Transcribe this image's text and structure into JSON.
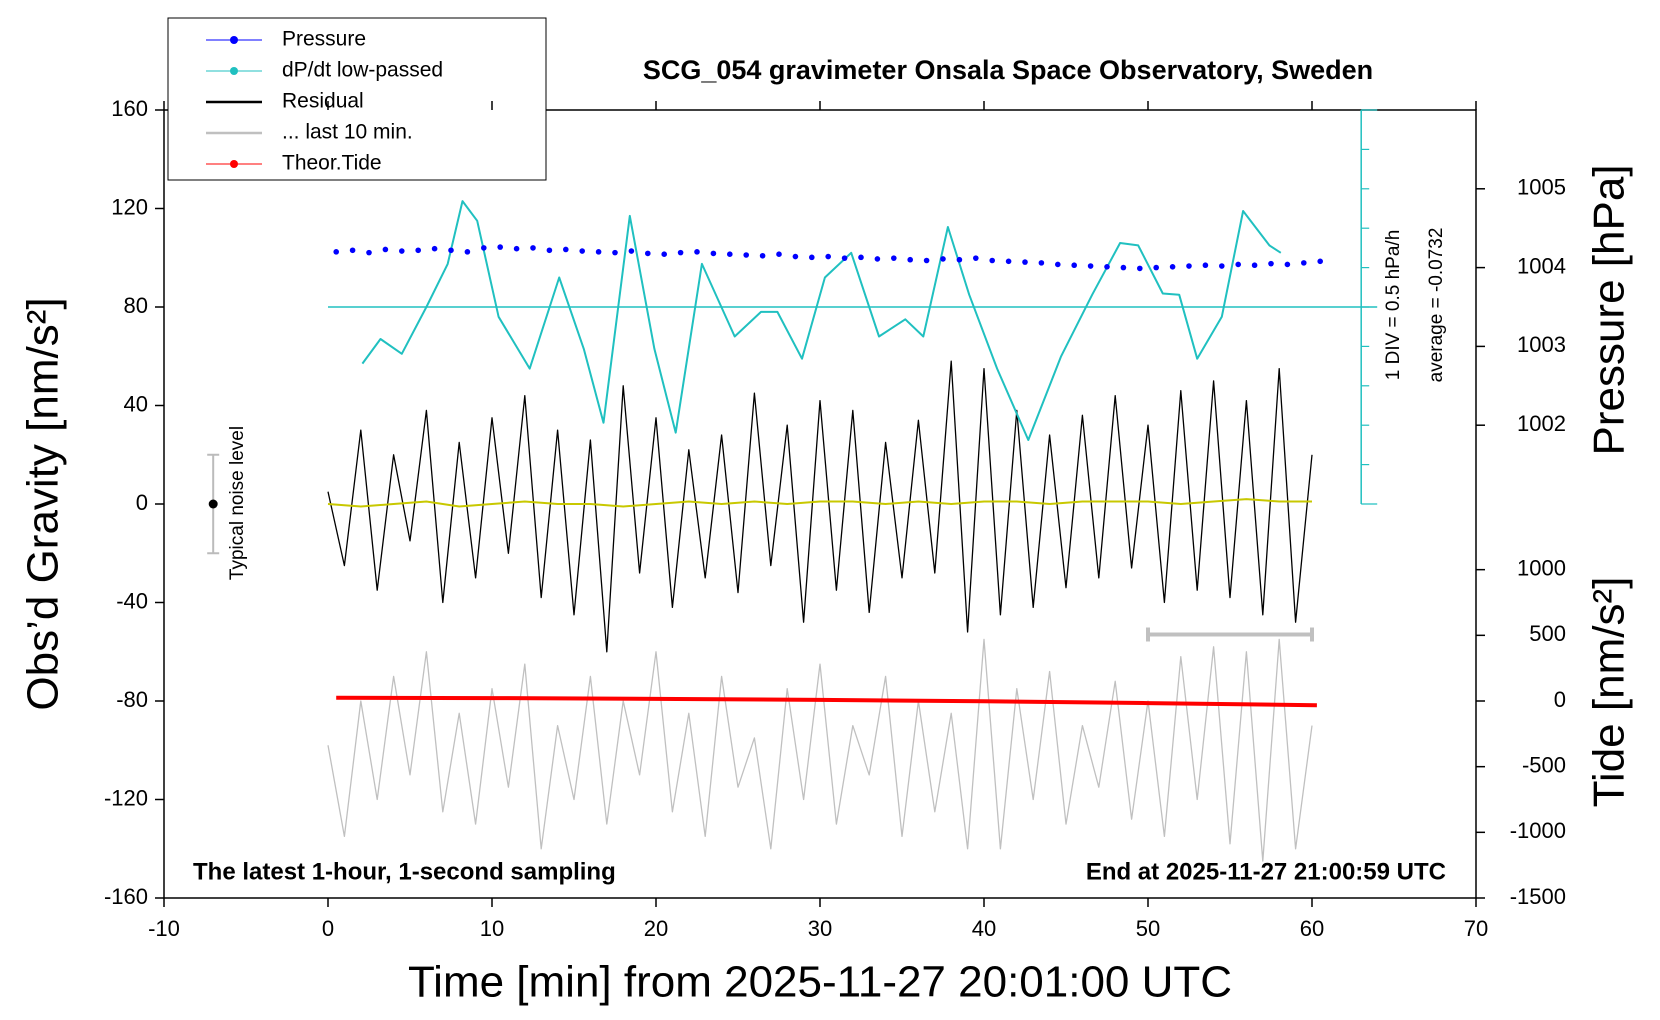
{
  "chart_data": {
    "type": "line",
    "title": "SCG_054 gravimeter Onsala Space Observatory, Sweden",
    "x_label": "Time [min] from 2025-11-27 20:01:00 UTC",
    "y_label": "Obs’d Gravity [nm/s²]",
    "y2_label": "Pressure [hPa]",
    "y3_label": "Tide [nm/s²]",
    "annotations": [
      "The latest 1-hour, 1-second sampling",
      "End at 2025-11-27 21:00:59 UTC"
    ],
    "xlim": [
      -10,
      70
    ],
    "xticks": [
      -10,
      0,
      10,
      20,
      30,
      40,
      50,
      60,
      70
    ],
    "ylim": [
      -160,
      160
    ],
    "yticks": [
      -160,
      -120,
      -80,
      -40,
      0,
      40,
      80,
      120,
      160
    ],
    "y2lim": [
      996,
      1006
    ],
    "y2ticks": [
      1002,
      1003,
      1004,
      1005
    ],
    "y3lim": [
      -1500,
      4500
    ],
    "y3ticks": [
      -1500,
      -1000,
      -500,
      0,
      500,
      1000
    ],
    "grid": false,
    "legend": "upper left",
    "series": [
      {
        "name": "Pressure",
        "color": "#0000ff",
        "axis": "y2",
        "marker": "dot",
        "x": [
          0.5,
          1.5,
          2.5,
          3.5,
          4.5,
          5.5,
          6.5,
          7.5,
          8.5,
          9.5,
          10.5,
          11.5,
          12.5,
          13.5,
          14.5,
          15.5,
          16.5,
          17.5,
          18.5,
          19.5,
          20.5,
          21.5,
          22.5,
          23.5,
          24.5,
          25.5,
          26.5,
          27.5,
          28.5,
          29.5,
          30.5,
          31.5,
          32.5,
          33.5,
          34.5,
          35.5,
          36.5,
          37.5,
          38.5,
          39.5,
          40.5,
          41.5,
          42.5,
          43.5,
          44.5,
          45.5,
          46.5,
          47.5,
          48.5,
          49.5,
          50.5,
          51.5,
          52.5,
          53.5,
          54.5,
          55.5,
          56.5,
          57.5,
          58.5,
          59.5,
          60.5
        ],
        "values": [
          1004.2,
          1004.22,
          1004.19,
          1004.23,
          1004.21,
          1004.22,
          1004.24,
          1004.22,
          1004.2,
          1004.25,
          1004.26,
          1004.24,
          1004.25,
          1004.22,
          1004.23,
          1004.21,
          1004.2,
          1004.19,
          1004.21,
          1004.18,
          1004.17,
          1004.19,
          1004.2,
          1004.18,
          1004.17,
          1004.16,
          1004.15,
          1004.17,
          1004.14,
          1004.13,
          1004.14,
          1004.12,
          1004.13,
          1004.11,
          1004.12,
          1004.1,
          1004.09,
          1004.11,
          1004.1,
          1004.12,
          1004.09,
          1004.08,
          1004.07,
          1004.06,
          1004.04,
          1004.03,
          1004.02,
          1004.01,
          1004.0,
          1003.99,
          1004.0,
          1004.01,
          1004.02,
          1004.03,
          1004.02,
          1004.04,
          1004.03,
          1004.05,
          1004.04,
          1004.06,
          1004.08
        ]
      },
      {
        "name": "dP/dt low-passed",
        "color": "#20c0c0",
        "axis": "y",
        "marker": "dot",
        "x": [
          2.1,
          3.2,
          4.5,
          6,
          7.3,
          8.2,
          9.1,
          10.4,
          12.3,
          14.1,
          15.6,
          16.8,
          18.4,
          19.9,
          21.2,
          22.8,
          24.8,
          26.4,
          27.4,
          28.9,
          30.3,
          31.9,
          33.6,
          35.2,
          36.3,
          37.8,
          39.1,
          40.8,
          42.7,
          44.7,
          46.6,
          48.3,
          49.4,
          50.9,
          51.9,
          53,
          54.5,
          55.8,
          57.4,
          58.1
        ],
        "values": [
          57,
          67,
          61,
          80,
          97.5,
          123,
          115,
          76,
          55,
          92,
          63,
          33,
          117,
          63,
          29,
          97.5,
          68,
          78,
          78,
          59,
          92,
          102,
          68,
          75,
          68,
          112.5,
          85,
          55,
          26,
          60,
          85,
          106,
          105,
          85.5,
          85,
          59,
          76,
          119,
          105,
          102
        ]
      },
      {
        "name": "Residual",
        "color": "#000000",
        "axis": "y",
        "marker": "line",
        "x": [
          0,
          1,
          2,
          3,
          4,
          5,
          6,
          7,
          8,
          9,
          10,
          11,
          12,
          13,
          14,
          15,
          16,
          17,
          18,
          19,
          20,
          21,
          22,
          23,
          24,
          25,
          26,
          27,
          28,
          29,
          30,
          31,
          32,
          33,
          34,
          35,
          36,
          37,
          38,
          39,
          40,
          41,
          42,
          43,
          44,
          45,
          46,
          47,
          48,
          49,
          50,
          51,
          52,
          53,
          54,
          55,
          56,
          57,
          58,
          59,
          60
        ],
        "values": [
          5,
          -25,
          30,
          -35,
          20,
          -15,
          38,
          -40,
          25,
          -30,
          35,
          -20,
          44,
          -38,
          30,
          -45,
          26,
          -60,
          48,
          -28,
          35,
          -42,
          22,
          -30,
          28,
          -36,
          45,
          -25,
          32,
          -48,
          42,
          -35,
          38,
          -44,
          25,
          -30,
          34,
          -28,
          58,
          -52,
          55,
          -45,
          38,
          -42,
          28,
          -34,
          36,
          -30,
          44,
          -26,
          32,
          -40,
          46,
          -35,
          50,
          -38,
          42,
          -45,
          55,
          -48,
          20
        ]
      },
      {
        "name": "... last 10 min.",
        "color": "#c0c0c0",
        "axis": "y",
        "marker": "line",
        "x": [
          0,
          1,
          2,
          3,
          4,
          5,
          6,
          7,
          8,
          9,
          10,
          11,
          12,
          13,
          14,
          15,
          16,
          17,
          18,
          19,
          20,
          21,
          22,
          23,
          24,
          25,
          26,
          27,
          28,
          29,
          30,
          31,
          32,
          33,
          34,
          35,
          36,
          37,
          38,
          39,
          40,
          41,
          42,
          43,
          44,
          45,
          46,
          47,
          48,
          49,
          50,
          51,
          52,
          53,
          54,
          55,
          56,
          57,
          58,
          59,
          60
        ],
        "values": [
          -98,
          -135,
          -80,
          -120,
          -70,
          -110,
          -60,
          -125,
          -85,
          -130,
          -75,
          -115,
          -65,
          -140,
          -90,
          -120,
          -70,
          -130,
          -80,
          -110,
          -60,
          -125,
          -85,
          -135,
          -70,
          -115,
          -95,
          -140,
          -75,
          -120,
          -65,
          -130,
          -90,
          -110,
          -70,
          -135,
          -80,
          -125,
          -85,
          -140,
          -55,
          -140,
          -75,
          -120,
          -68,
          -130,
          -90,
          -115,
          -72,
          -128,
          -80,
          -135,
          -62,
          -120,
          -58,
          -138,
          -60,
          -145,
          -55,
          -140,
          -90
        ]
      },
      {
        "name": "Theor.Tide",
        "color": "#ff0000",
        "axis": "y3",
        "marker": "dot",
        "x": [
          0.5,
          10,
          20,
          30,
          40,
          50,
          60.3
        ],
        "values": [
          24,
          22,
          16,
          8,
          -2,
          -16,
          -32
        ]
      }
    ],
    "smoothed_residual": {
      "color": "#c8c800",
      "x": [
        0,
        2,
        4,
        6,
        8,
        10,
        12,
        14,
        16,
        18,
        20,
        22,
        24,
        26,
        28,
        30,
        32,
        34,
        36,
        38,
        40,
        42,
        44,
        46,
        48,
        50,
        52,
        54,
        56,
        58,
        60
      ],
      "values": [
        0,
        -1,
        0,
        1,
        -1,
        0,
        1,
        0,
        0,
        -1,
        0,
        1,
        0,
        1,
        0,
        1,
        1,
        0,
        1,
        0,
        1,
        1,
        0,
        1,
        1,
        1,
        0,
        1,
        2,
        1,
        1
      ]
    },
    "noise_level": {
      "label": "Typical noise level",
      "x": -7,
      "value": 0,
      "error": 20
    },
    "last10_bracket": {
      "x": [
        50,
        60
      ],
      "value": -53
    },
    "dpdt_scale": {
      "x": 63,
      "average_level": 80,
      "ticks": [
        0,
        16,
        32,
        48,
        64,
        80,
        96,
        112,
        128,
        144,
        160
      ],
      "labels": [
        "1 DIV = 0.5 hPa/h",
        "average = -0.0732"
      ]
    }
  }
}
